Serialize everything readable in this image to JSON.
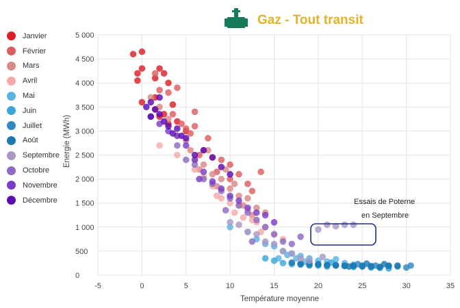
{
  "chart_data": {
    "type": "scatter",
    "title": "Gaz - Tout transit",
    "title_color": "#E3B12B",
    "icon_color": "#157A5A",
    "xlabel": "Température moyenne",
    "ylabel": "Energie (MWh)",
    "xlim": [
      -5,
      35
    ],
    "ylim": [
      0,
      5000
    ],
    "x_ticks": [
      "-5",
      "0",
      "5",
      "10",
      "15",
      "20",
      "25",
      "30",
      "35"
    ],
    "y_ticks": [
      "0",
      "500",
      "1 000",
      "1 500",
      "2 000",
      "2 500",
      "3 000",
      "3 500",
      "4 000",
      "4 500",
      "5 000"
    ],
    "grid": true,
    "legend_position": "left",
    "series": [
      {
        "name": "Janvier",
        "color": "#D92027",
        "points": [
          [
            -1,
            4600
          ],
          [
            0,
            4650
          ],
          [
            -0.5,
            4200
          ],
          [
            0,
            4300
          ],
          [
            -0.5,
            4050
          ],
          [
            2,
            4300
          ],
          [
            2.5,
            4200
          ],
          [
            1.5,
            4100
          ],
          [
            3,
            4000
          ],
          [
            1.5,
            3700
          ],
          [
            0,
            3600
          ],
          [
            2,
            3300
          ],
          [
            3,
            3150
          ],
          [
            4,
            3200
          ],
          [
            2.5,
            3350
          ],
          [
            5,
            3000
          ],
          [
            1.5,
            3450
          ],
          [
            3.5,
            3550
          ]
        ]
      },
      {
        "name": "Février",
        "color": "#DD5D60",
        "points": [
          [
            1.5,
            4200
          ],
          [
            2,
            3850
          ],
          [
            3,
            3800
          ],
          [
            4,
            3900
          ],
          [
            3.5,
            3350
          ],
          [
            5,
            3050
          ],
          [
            6,
            3100
          ],
          [
            5.5,
            2950
          ],
          [
            7,
            2600
          ],
          [
            6.5,
            2500
          ],
          [
            8,
            2450
          ],
          [
            9,
            2400
          ],
          [
            10,
            2300
          ],
          [
            8.5,
            2150
          ],
          [
            11,
            2100
          ],
          [
            12,
            1900
          ],
          [
            10,
            2000
          ],
          [
            13.5,
            2150
          ],
          [
            12.5,
            1750
          ],
          [
            7.5,
            2850
          ],
          [
            6,
            3400
          ],
          [
            4.5,
            3150
          ]
        ]
      },
      {
        "name": "Mars",
        "color": "#D98A88",
        "points": [
          [
            1,
            3700
          ],
          [
            2,
            3500
          ],
          [
            3,
            3250
          ],
          [
            4,
            2900
          ],
          [
            5,
            2800
          ],
          [
            5.5,
            2600
          ],
          [
            6,
            2400
          ],
          [
            7,
            2300
          ],
          [
            6.5,
            2200
          ],
          [
            8,
            2100
          ],
          [
            9,
            2000
          ],
          [
            8.5,
            1850
          ],
          [
            10,
            1800
          ],
          [
            11,
            1650
          ],
          [
            12,
            1600
          ],
          [
            11.5,
            1450
          ],
          [
            13,
            1400
          ],
          [
            12.5,
            1250
          ],
          [
            14,
            1300
          ],
          [
            7.5,
            2600
          ],
          [
            9.5,
            2200
          ],
          [
            10.5,
            1900
          ]
        ]
      },
      {
        "name": "Avril",
        "color": "#F5A9A9",
        "points": [
          [
            2,
            2700
          ],
          [
            4,
            2500
          ],
          [
            6,
            2200
          ],
          [
            7,
            2050
          ],
          [
            8,
            1850
          ],
          [
            8.5,
            1650
          ],
          [
            9,
            1600
          ],
          [
            10,
            1500
          ],
          [
            11,
            1450
          ],
          [
            12,
            1350
          ],
          [
            12.5,
            1150
          ],
          [
            13,
            1100
          ],
          [
            14,
            1000
          ],
          [
            15,
            850
          ],
          [
            13.5,
            900
          ],
          [
            11.5,
            1200
          ],
          [
            16,
            750
          ],
          [
            10.5,
            1300
          ]
        ]
      },
      {
        "name": "Mai",
        "color": "#5CB3E0",
        "points": [
          [
            10,
            1000
          ],
          [
            12,
            900
          ],
          [
            13,
            750
          ],
          [
            14,
            650
          ],
          [
            15,
            600
          ],
          [
            16,
            500
          ],
          [
            17,
            450
          ],
          [
            18,
            400
          ],
          [
            19,
            350
          ],
          [
            20,
            300
          ],
          [
            21,
            280
          ],
          [
            22,
            330
          ],
          [
            23,
            250
          ],
          [
            24,
            220
          ],
          [
            18.5,
            280
          ],
          [
            17.5,
            350
          ],
          [
            16.5,
            420
          ],
          [
            15.5,
            350
          ]
        ]
      },
      {
        "name": "Juin",
        "color": "#3AA7DB",
        "points": [
          [
            14,
            350
          ],
          [
            15,
            300
          ],
          [
            16,
            250
          ],
          [
            17,
            230
          ],
          [
            18,
            220
          ],
          [
            19,
            200
          ],
          [
            20,
            200
          ],
          [
            21,
            180
          ],
          [
            22,
            200
          ],
          [
            23,
            190
          ],
          [
            24,
            170
          ],
          [
            25,
            180
          ],
          [
            26,
            160
          ],
          [
            27,
            150
          ],
          [
            28,
            140
          ],
          [
            21.5,
            260
          ]
        ]
      },
      {
        "name": "Juillet",
        "color": "#3289BF",
        "points": [
          [
            18,
            230
          ],
          [
            19,
            250
          ],
          [
            20,
            220
          ],
          [
            21,
            210
          ],
          [
            22,
            200
          ],
          [
            23,
            190
          ],
          [
            24,
            200
          ],
          [
            25,
            180
          ],
          [
            26,
            190
          ],
          [
            27,
            170
          ],
          [
            28,
            200
          ],
          [
            29,
            180
          ],
          [
            30,
            160
          ],
          [
            30.5,
            200
          ],
          [
            24.5,
            230
          ],
          [
            26.5,
            200
          ]
        ]
      },
      {
        "name": "Août",
        "color": "#1B78B0",
        "points": [
          [
            17,
            260
          ],
          [
            18,
            240
          ],
          [
            19,
            220
          ],
          [
            20,
            230
          ],
          [
            21,
            210
          ],
          [
            22,
            210
          ],
          [
            23,
            200
          ],
          [
            24,
            190
          ],
          [
            25,
            200
          ],
          [
            26,
            180
          ],
          [
            27,
            170
          ],
          [
            28,
            190
          ],
          [
            29,
            200
          ],
          [
            25.5,
            240
          ],
          [
            27.5,
            230
          ],
          [
            23.5,
            180
          ]
        ]
      },
      {
        "name": "Septembre",
        "color": "#A898C7",
        "points": [
          [
            10,
            1100
          ],
          [
            11,
            1050
          ],
          [
            12,
            900
          ],
          [
            13,
            850
          ],
          [
            14,
            700
          ],
          [
            15,
            650
          ],
          [
            16,
            500
          ],
          [
            17,
            450
          ],
          [
            18,
            350
          ],
          [
            19,
            300
          ],
          [
            20,
            950
          ],
          [
            21,
            1050
          ],
          [
            22,
            1020
          ],
          [
            23,
            1050
          ],
          [
            24,
            1050
          ],
          [
            20.5,
            380
          ]
        ]
      },
      {
        "name": "Octobre",
        "color": "#8E6BC1",
        "points": [
          [
            4,
            2700
          ],
          [
            5,
            2400
          ],
          [
            6,
            2300
          ],
          [
            7,
            2000
          ],
          [
            8,
            1900
          ],
          [
            9,
            1750
          ],
          [
            10,
            1600
          ],
          [
            11,
            1450
          ],
          [
            12,
            1300
          ],
          [
            13,
            1150
          ],
          [
            14,
            1000
          ],
          [
            15,
            850
          ],
          [
            16,
            700
          ],
          [
            17,
            650
          ],
          [
            18,
            800
          ],
          [
            9.5,
            1350
          ],
          [
            12.5,
            700
          ]
        ]
      },
      {
        "name": "Novembre",
        "color": "#7A3DC5",
        "points": [
          [
            1,
            3300
          ],
          [
            2,
            3150
          ],
          [
            3,
            3000
          ],
          [
            4,
            2900
          ],
          [
            5,
            2700
          ],
          [
            6,
            2400
          ],
          [
            7,
            2150
          ],
          [
            8,
            1950
          ],
          [
            9,
            1800
          ],
          [
            10,
            1650
          ],
          [
            11,
            1550
          ],
          [
            12,
            1400
          ],
          [
            13,
            1300
          ],
          [
            14,
            1250
          ],
          [
            6.5,
            2000
          ],
          [
            15,
            1100
          ]
        ]
      },
      {
        "name": "Décembre",
        "color": "#5D0CB3",
        "points": [
          [
            0.5,
            3500
          ],
          [
            1,
            3600
          ],
          [
            1.5,
            3450
          ],
          [
            2,
            3350
          ],
          [
            2.5,
            3200
          ],
          [
            3,
            3100
          ],
          [
            4,
            3050
          ],
          [
            5,
            2850
          ],
          [
            6,
            2500
          ],
          [
            7,
            2600
          ],
          [
            8,
            2450
          ],
          [
            9,
            2250
          ],
          [
            10,
            2100
          ],
          [
            1,
            3300
          ],
          [
            3.5,
            2950
          ],
          [
            4.5,
            2900
          ],
          [
            2,
            3700
          ]
        ]
      }
    ],
    "annotation": {
      "lines": [
        "Essais de Poterne",
        "en Septembre"
      ],
      "box_color": "#1B2E8C"
    }
  }
}
